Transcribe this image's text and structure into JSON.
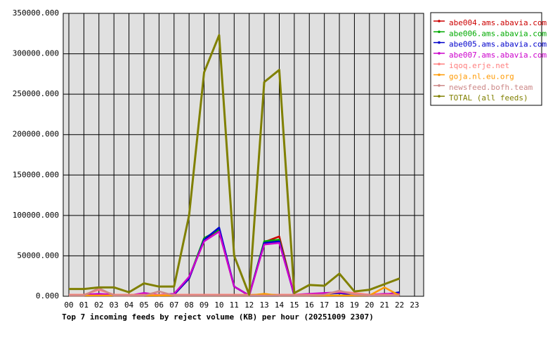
{
  "chart_data": {
    "type": "line",
    "title": "Top 7 incoming feeds by reject volume (KB) per hour (20251009 2307)",
    "categories": [
      "00",
      "01",
      "02",
      "03",
      "04",
      "05",
      "06",
      "07",
      "08",
      "09",
      "10",
      "11",
      "12",
      "13",
      "14",
      "15",
      "16",
      "17",
      "18",
      "19",
      "20",
      "21",
      "22",
      "23"
    ],
    "ylim": [
      0,
      350000
    ],
    "yticks": [
      {
        "value": 0,
        "label": "0.000"
      },
      {
        "value": 50000,
        "label": "50000.000"
      },
      {
        "value": 100000,
        "label": "100000.000"
      },
      {
        "value": 150000,
        "label": "150000.000"
      },
      {
        "value": 200000,
        "label": "200000.000"
      },
      {
        "value": 250000,
        "label": "250000.000"
      },
      {
        "value": 300000,
        "label": "300000.000"
      },
      {
        "value": 350000,
        "label": "350000.000"
      }
    ],
    "grid": true,
    "legend": "outside-right",
    "series": [
      {
        "name": "abe004.ams.abavia.com",
        "color": "#cc0000",
        "values": [
          1000,
          1000,
          2000,
          1000,
          1000,
          2000,
          1000,
          2000,
          22000,
          70000,
          80000,
          12000,
          1000,
          67000,
          74000,
          1000,
          2000,
          3000,
          5000,
          2000,
          2000,
          2000,
          4000,
          null
        ]
      },
      {
        "name": "abe006.ams.abavia.com",
        "color": "#00aa00",
        "values": [
          1000,
          1000,
          2000,
          1000,
          1000,
          2000,
          1000,
          2000,
          23000,
          72000,
          82000,
          12000,
          1000,
          68000,
          70000,
          1000,
          2000,
          3000,
          4000,
          2000,
          2000,
          2000,
          3000,
          null
        ]
      },
      {
        "name": "abe005.ams.abavia.com",
        "color": "#0000cc",
        "values": [
          1000,
          1000,
          1000,
          1000,
          1000,
          3000,
          1000,
          2000,
          22000,
          70000,
          85000,
          12000,
          1000,
          66000,
          68000,
          1000,
          2000,
          3000,
          4000,
          2000,
          2000,
          2000,
          5000,
          null
        ]
      },
      {
        "name": "abe007.ams.abavia.com",
        "color": "#cc00cc",
        "values": [
          2000,
          2000,
          3000,
          2000,
          1000,
          4000,
          2000,
          3000,
          24000,
          68000,
          80000,
          12000,
          1000,
          64000,
          66000,
          2000,
          3000,
          4000,
          5000,
          3000,
          2000,
          3000,
          3000,
          null
        ]
      },
      {
        "name": "iqoq.erje.net",
        "color": "#ff8080",
        "values": [
          2000,
          2000,
          8000,
          2000,
          2000,
          2000,
          2000,
          2000,
          2000,
          2000,
          2000,
          2000,
          2000,
          2000,
          2000,
          2000,
          2000,
          2000,
          6000,
          4000,
          2000,
          2000,
          2000,
          null
        ]
      },
      {
        "name": "goja.nl.eu.org",
        "color": "#ff9900",
        "values": [
          1000,
          1000,
          1000,
          1000,
          1000,
          1000,
          1000,
          1000,
          1000,
          1000,
          1000,
          1000,
          1000,
          3000,
          1000,
          1000,
          1000,
          1000,
          1000,
          1000,
          1000,
          11000,
          1000,
          null
        ]
      },
      {
        "name": "newsfeed.bofh.team",
        "color": "#cc8888",
        "values": [
          1000,
          1000,
          10000,
          1000,
          1000,
          1000,
          6000,
          1000,
          1000,
          1000,
          1000,
          1000,
          1000,
          1000,
          1000,
          1000,
          1000,
          2000,
          7000,
          2000,
          1000,
          1000,
          1000,
          null
        ]
      },
      {
        "name": "TOTAL (all feeds)",
        "color": "#808000",
        "values": [
          9000,
          9000,
          11000,
          11000,
          5000,
          16000,
          12000,
          12000,
          100000,
          277000,
          323000,
          50000,
          2000,
          265000,
          280000,
          4000,
          14000,
          13000,
          28000,
          6000,
          8000,
          15000,
          22000,
          null
        ]
      }
    ]
  }
}
